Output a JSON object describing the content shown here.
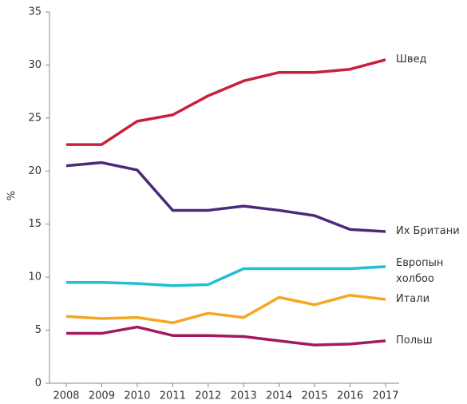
{
  "chart_data": {
    "type": "line",
    "ylabel": "%",
    "categories": [
      "2008",
      "2009",
      "2010",
      "2011",
      "2012",
      "2013",
      "2014",
      "2015",
      "2016",
      "2017"
    ],
    "ylim": [
      0,
      35
    ],
    "yticks": [
      0,
      5,
      10,
      15,
      20,
      25,
      30,
      35
    ],
    "series": [
      {
        "name": "Швед",
        "color": "#c8203a",
        "values": [
          22.5,
          22.5,
          24.7,
          25.3,
          27.1,
          28.5,
          29.3,
          29.3,
          29.6,
          30.5
        ]
      },
      {
        "name": "Их Британи",
        "color": "#4a2a7a",
        "values": [
          20.5,
          20.8,
          20.1,
          16.3,
          16.3,
          16.7,
          16.3,
          15.8,
          14.5,
          14.3
        ]
      },
      {
        "name": "Европын холбоо",
        "color": "#1fbfd4",
        "values": [
          9.5,
          9.5,
          9.4,
          9.2,
          9.3,
          10.8,
          10.8,
          10.8,
          10.8,
          11.0
        ]
      },
      {
        "name": "Итали",
        "color": "#f5a623",
        "values": [
          6.3,
          6.1,
          6.2,
          5.7,
          6.6,
          6.2,
          8.1,
          7.4,
          8.3,
          7.9
        ]
      },
      {
        "name": "Польш",
        "color": "#a3195b",
        "values": [
          4.7,
          4.7,
          5.3,
          4.5,
          4.5,
          4.4,
          4.0,
          3.6,
          3.7,
          4.0
        ]
      }
    ]
  }
}
